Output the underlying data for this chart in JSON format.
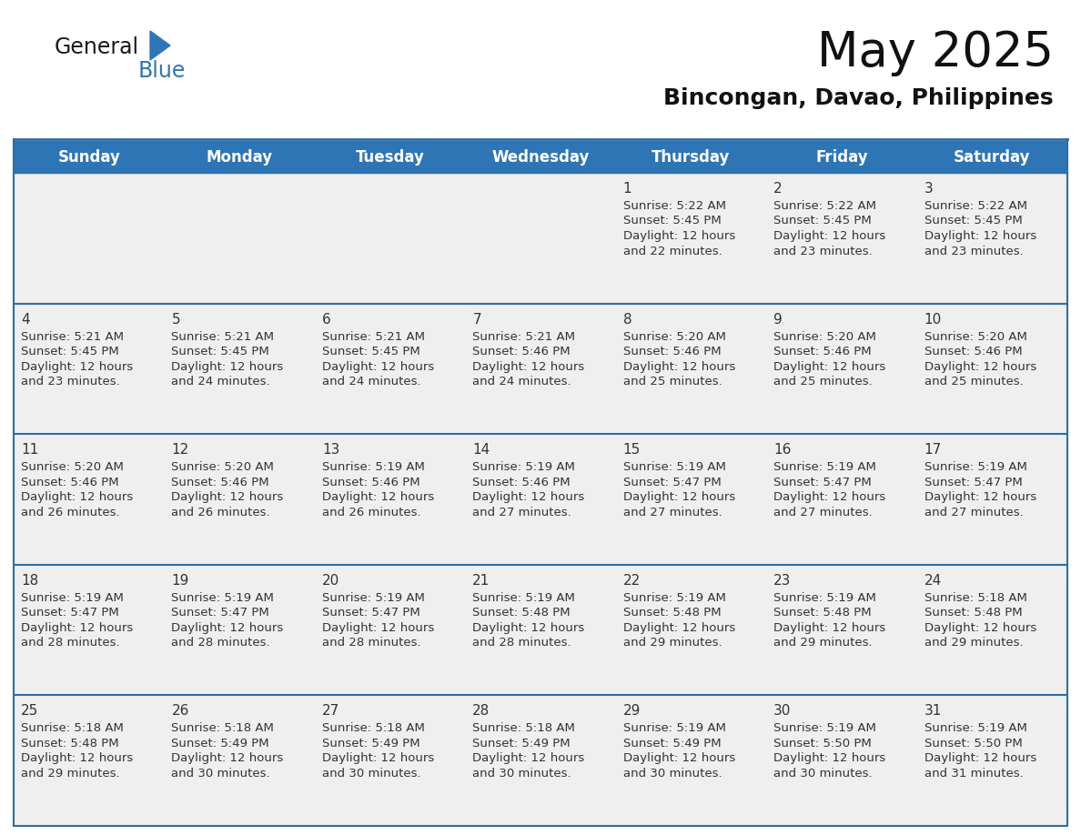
{
  "title": "May 2025",
  "subtitle": "Bincongan, Davao, Philippines",
  "days_of_week": [
    "Sunday",
    "Monday",
    "Tuesday",
    "Wednesday",
    "Thursday",
    "Friday",
    "Saturday"
  ],
  "header_bg": "#2E75B6",
  "header_text": "#FFFFFF",
  "cell_bg": "#EFEFEF",
  "cell_bg_week1": "#E8E8E8",
  "day_number_color": "#333333",
  "text_color": "#333333",
  "border_color": "#2E6DA4",
  "sep_line_color": "#2E6DA4",
  "logo_general_color": "#1a1a1a",
  "logo_blue_color": "#2E75B6",
  "weeks": [
    [
      {
        "day": null,
        "info": null
      },
      {
        "day": null,
        "info": null
      },
      {
        "day": null,
        "info": null
      },
      {
        "day": null,
        "info": null
      },
      {
        "day": 1,
        "info": "Sunrise: 5:22 AM\nSunset: 5:45 PM\nDaylight: 12 hours\nand 22 minutes."
      },
      {
        "day": 2,
        "info": "Sunrise: 5:22 AM\nSunset: 5:45 PM\nDaylight: 12 hours\nand 23 minutes."
      },
      {
        "day": 3,
        "info": "Sunrise: 5:22 AM\nSunset: 5:45 PM\nDaylight: 12 hours\nand 23 minutes."
      }
    ],
    [
      {
        "day": 4,
        "info": "Sunrise: 5:21 AM\nSunset: 5:45 PM\nDaylight: 12 hours\nand 23 minutes."
      },
      {
        "day": 5,
        "info": "Sunrise: 5:21 AM\nSunset: 5:45 PM\nDaylight: 12 hours\nand 24 minutes."
      },
      {
        "day": 6,
        "info": "Sunrise: 5:21 AM\nSunset: 5:45 PM\nDaylight: 12 hours\nand 24 minutes."
      },
      {
        "day": 7,
        "info": "Sunrise: 5:21 AM\nSunset: 5:46 PM\nDaylight: 12 hours\nand 24 minutes."
      },
      {
        "day": 8,
        "info": "Sunrise: 5:20 AM\nSunset: 5:46 PM\nDaylight: 12 hours\nand 25 minutes."
      },
      {
        "day": 9,
        "info": "Sunrise: 5:20 AM\nSunset: 5:46 PM\nDaylight: 12 hours\nand 25 minutes."
      },
      {
        "day": 10,
        "info": "Sunrise: 5:20 AM\nSunset: 5:46 PM\nDaylight: 12 hours\nand 25 minutes."
      }
    ],
    [
      {
        "day": 11,
        "info": "Sunrise: 5:20 AM\nSunset: 5:46 PM\nDaylight: 12 hours\nand 26 minutes."
      },
      {
        "day": 12,
        "info": "Sunrise: 5:20 AM\nSunset: 5:46 PM\nDaylight: 12 hours\nand 26 minutes."
      },
      {
        "day": 13,
        "info": "Sunrise: 5:19 AM\nSunset: 5:46 PM\nDaylight: 12 hours\nand 26 minutes."
      },
      {
        "day": 14,
        "info": "Sunrise: 5:19 AM\nSunset: 5:46 PM\nDaylight: 12 hours\nand 27 minutes."
      },
      {
        "day": 15,
        "info": "Sunrise: 5:19 AM\nSunset: 5:47 PM\nDaylight: 12 hours\nand 27 minutes."
      },
      {
        "day": 16,
        "info": "Sunrise: 5:19 AM\nSunset: 5:47 PM\nDaylight: 12 hours\nand 27 minutes."
      },
      {
        "day": 17,
        "info": "Sunrise: 5:19 AM\nSunset: 5:47 PM\nDaylight: 12 hours\nand 27 minutes."
      }
    ],
    [
      {
        "day": 18,
        "info": "Sunrise: 5:19 AM\nSunset: 5:47 PM\nDaylight: 12 hours\nand 28 minutes."
      },
      {
        "day": 19,
        "info": "Sunrise: 5:19 AM\nSunset: 5:47 PM\nDaylight: 12 hours\nand 28 minutes."
      },
      {
        "day": 20,
        "info": "Sunrise: 5:19 AM\nSunset: 5:47 PM\nDaylight: 12 hours\nand 28 minutes."
      },
      {
        "day": 21,
        "info": "Sunrise: 5:19 AM\nSunset: 5:48 PM\nDaylight: 12 hours\nand 28 minutes."
      },
      {
        "day": 22,
        "info": "Sunrise: 5:19 AM\nSunset: 5:48 PM\nDaylight: 12 hours\nand 29 minutes."
      },
      {
        "day": 23,
        "info": "Sunrise: 5:19 AM\nSunset: 5:48 PM\nDaylight: 12 hours\nand 29 minutes."
      },
      {
        "day": 24,
        "info": "Sunrise: 5:18 AM\nSunset: 5:48 PM\nDaylight: 12 hours\nand 29 minutes."
      }
    ],
    [
      {
        "day": 25,
        "info": "Sunrise: 5:18 AM\nSunset: 5:48 PM\nDaylight: 12 hours\nand 29 minutes."
      },
      {
        "day": 26,
        "info": "Sunrise: 5:18 AM\nSunset: 5:49 PM\nDaylight: 12 hours\nand 30 minutes."
      },
      {
        "day": 27,
        "info": "Sunrise: 5:18 AM\nSunset: 5:49 PM\nDaylight: 12 hours\nand 30 minutes."
      },
      {
        "day": 28,
        "info": "Sunrise: 5:18 AM\nSunset: 5:49 PM\nDaylight: 12 hours\nand 30 minutes."
      },
      {
        "day": 29,
        "info": "Sunrise: 5:19 AM\nSunset: 5:49 PM\nDaylight: 12 hours\nand 30 minutes."
      },
      {
        "day": 30,
        "info": "Sunrise: 5:19 AM\nSunset: 5:50 PM\nDaylight: 12 hours\nand 30 minutes."
      },
      {
        "day": 31,
        "info": "Sunrise: 5:19 AM\nSunset: 5:50 PM\nDaylight: 12 hours\nand 31 minutes."
      }
    ]
  ]
}
